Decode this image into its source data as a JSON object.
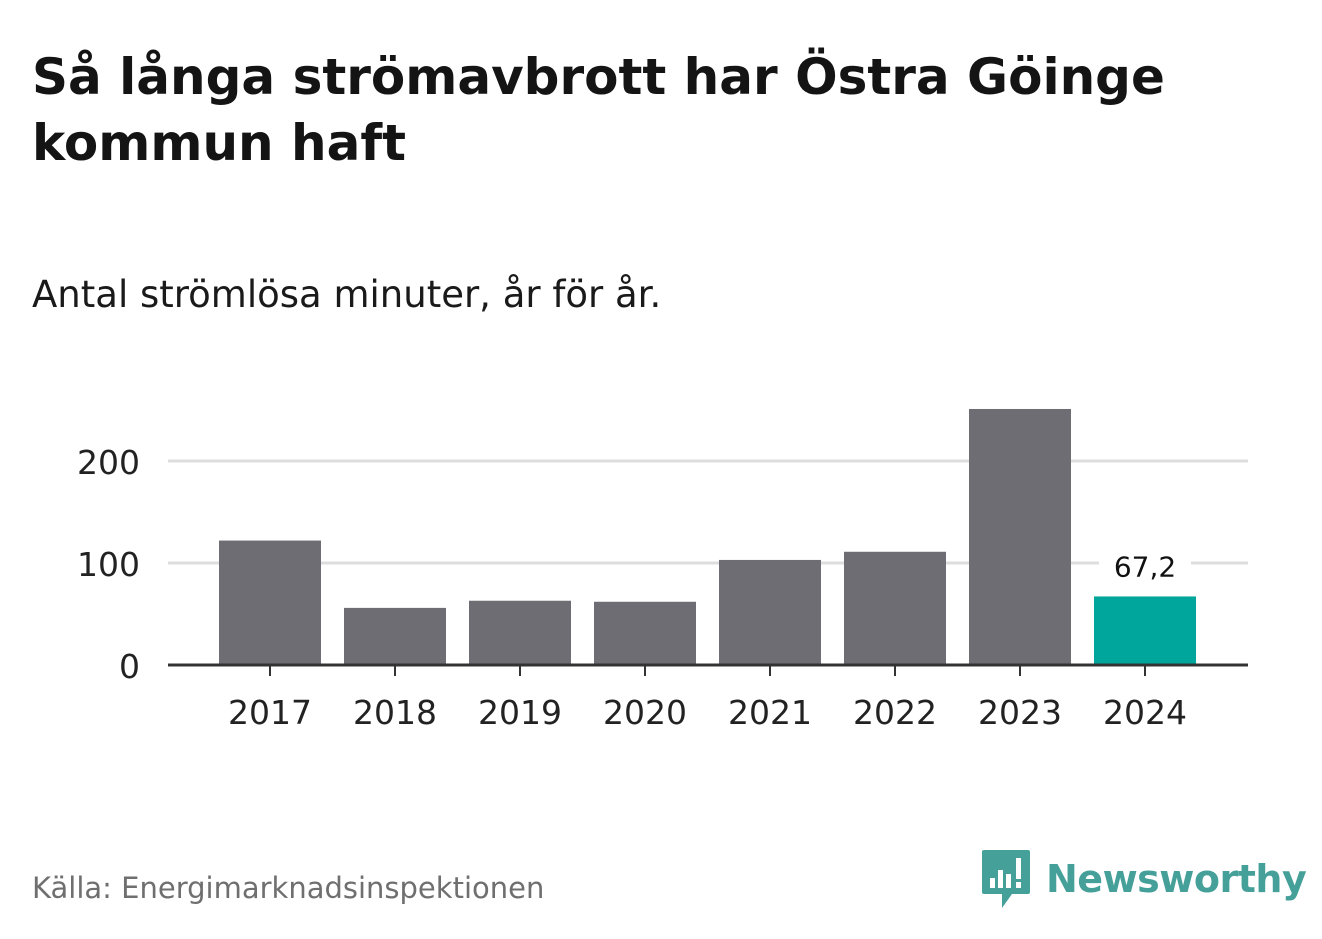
{
  "title": "Så långa strömavbrott har Östra Göinge kommun haft",
  "subtitle": "Antal strömlösa minuter, år för år.",
  "source": "Källa: Energimarknadsinspektionen",
  "logo": {
    "text": "Newsworthy",
    "icon": "newsworthy-logo-icon",
    "color": "#46a09a"
  },
  "colors": {
    "bar": "#6e6d73",
    "highlight": "#00a69b",
    "grid": "#dddddd",
    "axis": "#333333",
    "text": "#222222"
  },
  "chart_data": {
    "type": "bar",
    "title": "Så långa strömavbrott har Östra Göinge kommun haft",
    "subtitle": "Antal strömlösa minuter, år för år.",
    "xlabel": "",
    "ylabel": "",
    "categories": [
      "2017",
      "2018",
      "2019",
      "2020",
      "2021",
      "2022",
      "2023",
      "2024"
    ],
    "values": [
      122,
      56,
      63,
      62,
      103,
      111,
      251,
      67.2
    ],
    "highlight_index": 7,
    "highlight_label": "67,2",
    "ylim": [
      0,
      260
    ],
    "yticks": [
      0,
      100,
      200
    ],
    "ytick_labels": [
      "0",
      "100",
      "200"
    ],
    "grid": true
  }
}
